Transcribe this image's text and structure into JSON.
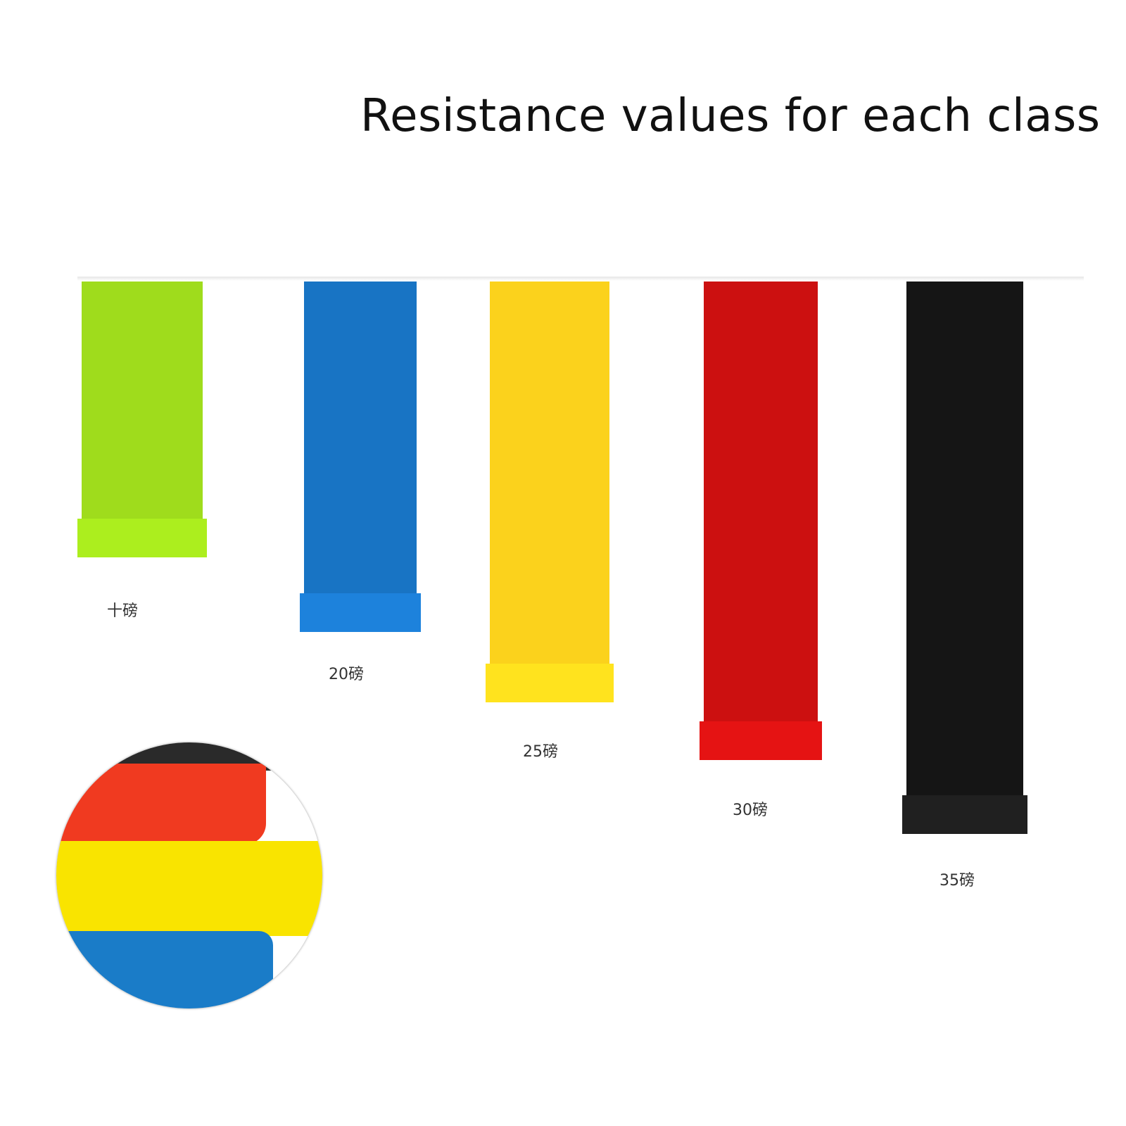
{
  "title": "Resistance values for each class",
  "bands": [
    {
      "label": "十磅",
      "color": "#9fdc1c"
    },
    {
      "label": "20磅",
      "color": "#1874c4"
    },
    {
      "label": "25磅",
      "color": "#fbd21c"
    },
    {
      "label": "30磅",
      "color": "#cc1010"
    },
    {
      "label": "35磅",
      "color": "#151515"
    }
  ],
  "detail_colors": [
    "#2a2a2a",
    "#f03a20",
    "#f9e400",
    "#1a7cc8"
  ]
}
